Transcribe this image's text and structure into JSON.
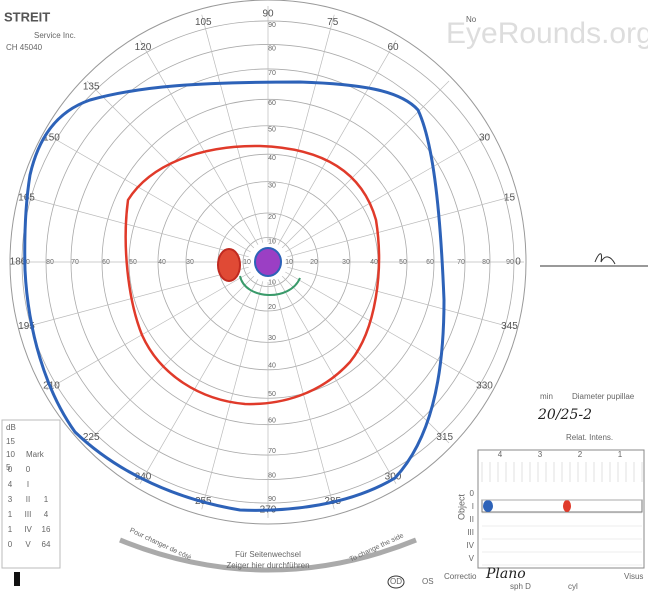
{
  "watermark": "EyeRounds.org",
  "header": {
    "brand": "STREIT",
    "service": "Service Inc.",
    "code": "CH 45040",
    "no": "No"
  },
  "angles": [
    "0",
    "15",
    "30",
    "60",
    "75",
    "90",
    "105",
    "120",
    "135",
    "150",
    "165",
    "180",
    "195",
    "210",
    "225",
    "240",
    "255",
    "270",
    "285",
    "300",
    "315",
    "330",
    "345"
  ],
  "radii": [
    "10",
    "20",
    "30",
    "40",
    "50",
    "60",
    "70",
    "80",
    "90"
  ],
  "right": {
    "min": "min",
    "diameter": "Diameter pupillae",
    "acuity": "20/25-2",
    "intensity": "Relat. Intens.",
    "intensity_cols": [
      "4",
      "3",
      "2",
      "1"
    ],
    "object": "Object",
    "object_rows": [
      "0",
      "I",
      "II",
      "III",
      "IV",
      "V"
    ]
  },
  "legend_table": {
    "db": "dB",
    "mark": "Mark",
    "db_scale": [
      "15",
      "10",
      "5"
    ],
    "rows": [
      [
        "0",
        "0"
      ],
      [
        "4",
        "I"
      ],
      [
        "3",
        "II",
        "1"
      ],
      [
        "1",
        "III",
        "4"
      ],
      [
        "1",
        "IV",
        "16"
      ],
      [
        "0",
        "V",
        "64"
      ]
    ]
  },
  "bottom": {
    "left_note": "Pour changer de côté",
    "right_note": "To change the side",
    "center1": "Für Seitenwechsel",
    "center2": "Zeiger hier durchführen",
    "eye": "OD",
    "os": "OS",
    "correction": "Correctio",
    "correction_value": "Plano",
    "sph": "sph D",
    "cyl": "cyl",
    "vis": "Visus"
  }
}
